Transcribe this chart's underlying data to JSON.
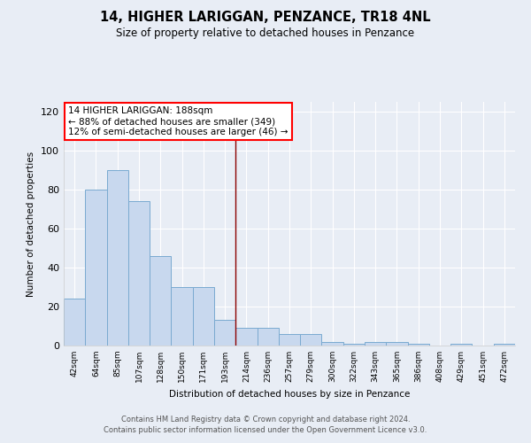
{
  "title": "14, HIGHER LARIGGAN, PENZANCE, TR18 4NL",
  "subtitle": "Size of property relative to detached houses in Penzance",
  "xlabel": "Distribution of detached houses by size in Penzance",
  "ylabel": "Number of detached properties",
  "bar_color": "#c8d8ee",
  "bar_edge_color": "#7aaad0",
  "background_color": "#e8edf5",
  "categories": [
    "42sqm",
    "64sqm",
    "85sqm",
    "107sqm",
    "128sqm",
    "150sqm",
    "171sqm",
    "193sqm",
    "214sqm",
    "236sqm",
    "257sqm",
    "279sqm",
    "300sqm",
    "322sqm",
    "343sqm",
    "365sqm",
    "386sqm",
    "408sqm",
    "429sqm",
    "451sqm",
    "472sqm"
  ],
  "values": [
    24,
    80,
    90,
    74,
    46,
    30,
    30,
    13,
    9,
    9,
    6,
    6,
    2,
    1,
    2,
    2,
    1,
    0,
    1,
    0,
    1
  ],
  "annotation_line1": "14 HIGHER LARIGGAN: 188sqm",
  "annotation_line2": "← 88% of detached houses are smaller (349)",
  "annotation_line3": "12% of semi-detached houses are larger (46) →",
  "ylim": [
    0,
    125
  ],
  "yticks": [
    0,
    20,
    40,
    60,
    80,
    100,
    120
  ],
  "vline_index": 7.5,
  "footer1": "Contains HM Land Registry data © Crown copyright and database right 2024.",
  "footer2": "Contains public sector information licensed under the Open Government Licence v3.0."
}
